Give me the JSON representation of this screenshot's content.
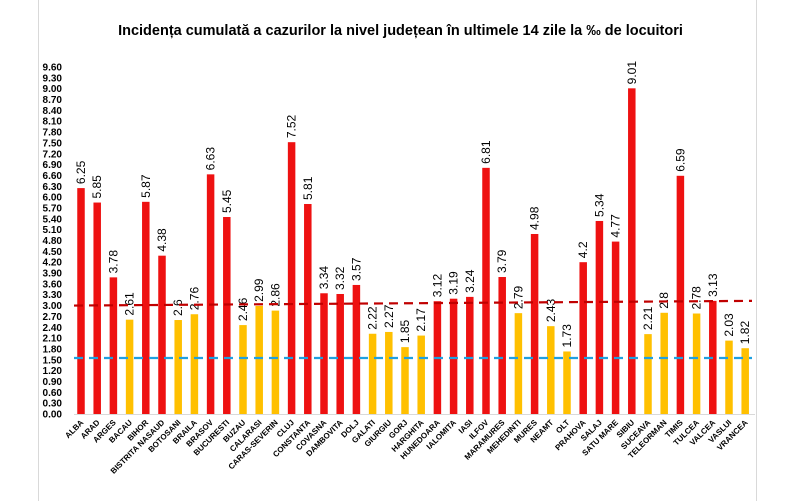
{
  "chart_data": {
    "type": "bar",
    "title": "Incidența cumulată a cazurilor la nivel județean în ultimele 14 zile la ‰ de locuitori",
    "xlabel": "",
    "ylabel": "",
    "ylim": [
      0,
      9.6
    ],
    "ytick_step": 0.3,
    "grid": false,
    "legend": "none",
    "categories": [
      "ALBA",
      "ARAD",
      "ARGES",
      "BACAU",
      "BIHOR",
      "BISTRITA NASAUD",
      "BOTOSANI",
      "BRAILA",
      "BRASOV",
      "BUCURESTI",
      "BUZAU",
      "CALARASI",
      "CARAS-SEVERIN",
      "CLUJ",
      "CONSTANTA",
      "COVASNA",
      "DAMBOVITA",
      "DOLJ",
      "GALATI",
      "GIURGIU",
      "GORJ",
      "HARGHITA",
      "HUNEDOARA",
      "IALOMITA",
      "IASI",
      "ILFOV",
      "MARAMURES",
      "MEHEDINTI",
      "MURES",
      "NEAMT",
      "OLT",
      "PRAHOVA",
      "SALAJ",
      "SATU MARE",
      "SIBIU",
      "SUCEAVA",
      "TELEORMAN",
      "TIMIS",
      "TULCEA",
      "VALCEA",
      "VASLUI",
      "VRANCEA"
    ],
    "values": [
      6.25,
      5.85,
      3.78,
      2.61,
      5.87,
      4.38,
      2.6,
      2.76,
      6.63,
      5.45,
      2.46,
      2.99,
      2.86,
      7.52,
      5.81,
      3.34,
      3.32,
      3.57,
      2.22,
      2.27,
      1.85,
      2.17,
      3.12,
      3.19,
      3.24,
      6.81,
      3.79,
      2.79,
      4.98,
      2.43,
      1.73,
      4.2,
      5.34,
      4.77,
      9.01,
      2.21,
      2.8,
      6.59,
      2.78,
      3.13,
      2.03,
      1.82
    ],
    "color_rule": {
      "threshold": 3.0,
      "above_color": "#ee1111",
      "below_color": "#ffc000"
    },
    "reference_lines": [
      {
        "style": "dashed",
        "color": "#c00000",
        "y_start": 3.0,
        "y_end": 3.13
      },
      {
        "style": "dashed",
        "color": "#1fa0e0",
        "y_start": 1.55,
        "y_end": 1.55
      }
    ]
  }
}
